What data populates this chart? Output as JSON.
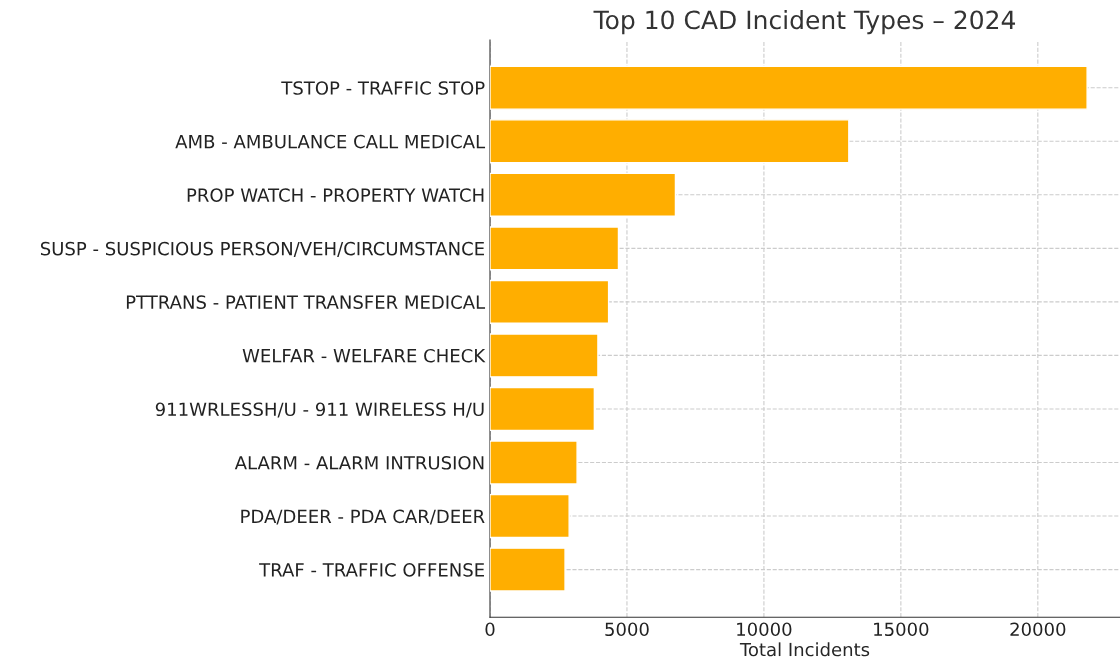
{
  "chart_data": {
    "type": "bar",
    "orientation": "horizontal",
    "title": "Top 10 CAD Incident Types – 2024",
    "xlabel": "Total Incidents",
    "categories": [
      "TSTOP - TRAFFIC STOP",
      "AMB - AMBULANCE CALL MEDICAL",
      "PROP WATCH - PROPERTY WATCH",
      "SUSP - SUSPICIOUS PERSON/VEH/CIRCUMSTANCE",
      "PTTRANS - PATIENT TRANSFER MEDICAL",
      "WELFAR - WELFARE CHECK",
      "911WRLESSH/U - 911 WIRELESS H/U",
      "ALARM - ALARM INTRUSION",
      "PDA/DEER - PDA CAR/DEER",
      "TRAF - TRAFFIC OFFENSE"
    ],
    "values": [
      21800,
      13100,
      6770,
      4690,
      4330,
      3940,
      3810,
      3180,
      2890,
      2740
    ],
    "color": "#ffae00",
    "xlim": [
      0,
      23000
    ],
    "xticks": [
      0,
      5000,
      10000,
      15000,
      20000
    ],
    "grid": true
  }
}
